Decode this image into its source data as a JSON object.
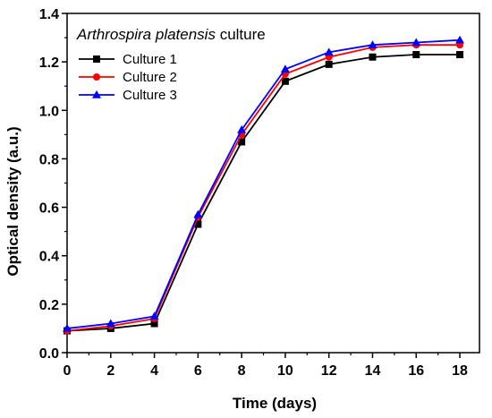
{
  "chart_data": {
    "type": "line",
    "title": "",
    "xlabel": "Time (days)",
    "ylabel": "Optical density (a.u.)",
    "xlim": [
      0,
      18.9
    ],
    "ylim": [
      0,
      1.4
    ],
    "xticks": [
      0,
      2,
      4,
      6,
      8,
      10,
      12,
      14,
      16,
      18
    ],
    "yticks": [
      0.0,
      0.2,
      0.4,
      0.6,
      0.8,
      1.0,
      1.2,
      1.4
    ],
    "ytick_labels": [
      "0.0",
      "0.2",
      "0.4",
      "0.6",
      "0.8",
      "1.0",
      "1.2",
      "1.4"
    ],
    "grid": false,
    "legend": {
      "placement": "top-left",
      "title_italic": "Arthrospira platensis",
      "title_rest": " culture"
    },
    "x": [
      0,
      2,
      4,
      6,
      8,
      10,
      12,
      14,
      16,
      18
    ],
    "series": [
      {
        "name": "Culture 1",
        "color": "#000000",
        "marker": "square",
        "values": [
          0.09,
          0.1,
          0.12,
          0.53,
          0.87,
          1.12,
          1.19,
          1.22,
          1.23,
          1.23
        ]
      },
      {
        "name": "Culture 2",
        "color": "#ff0000",
        "marker": "circle",
        "values": [
          0.09,
          0.11,
          0.14,
          0.56,
          0.9,
          1.15,
          1.22,
          1.26,
          1.27,
          1.27
        ]
      },
      {
        "name": "Culture 3",
        "color": "#0000ff",
        "marker": "triangle",
        "values": [
          0.1,
          0.12,
          0.15,
          0.57,
          0.92,
          1.17,
          1.24,
          1.27,
          1.28,
          1.29
        ]
      }
    ]
  }
}
